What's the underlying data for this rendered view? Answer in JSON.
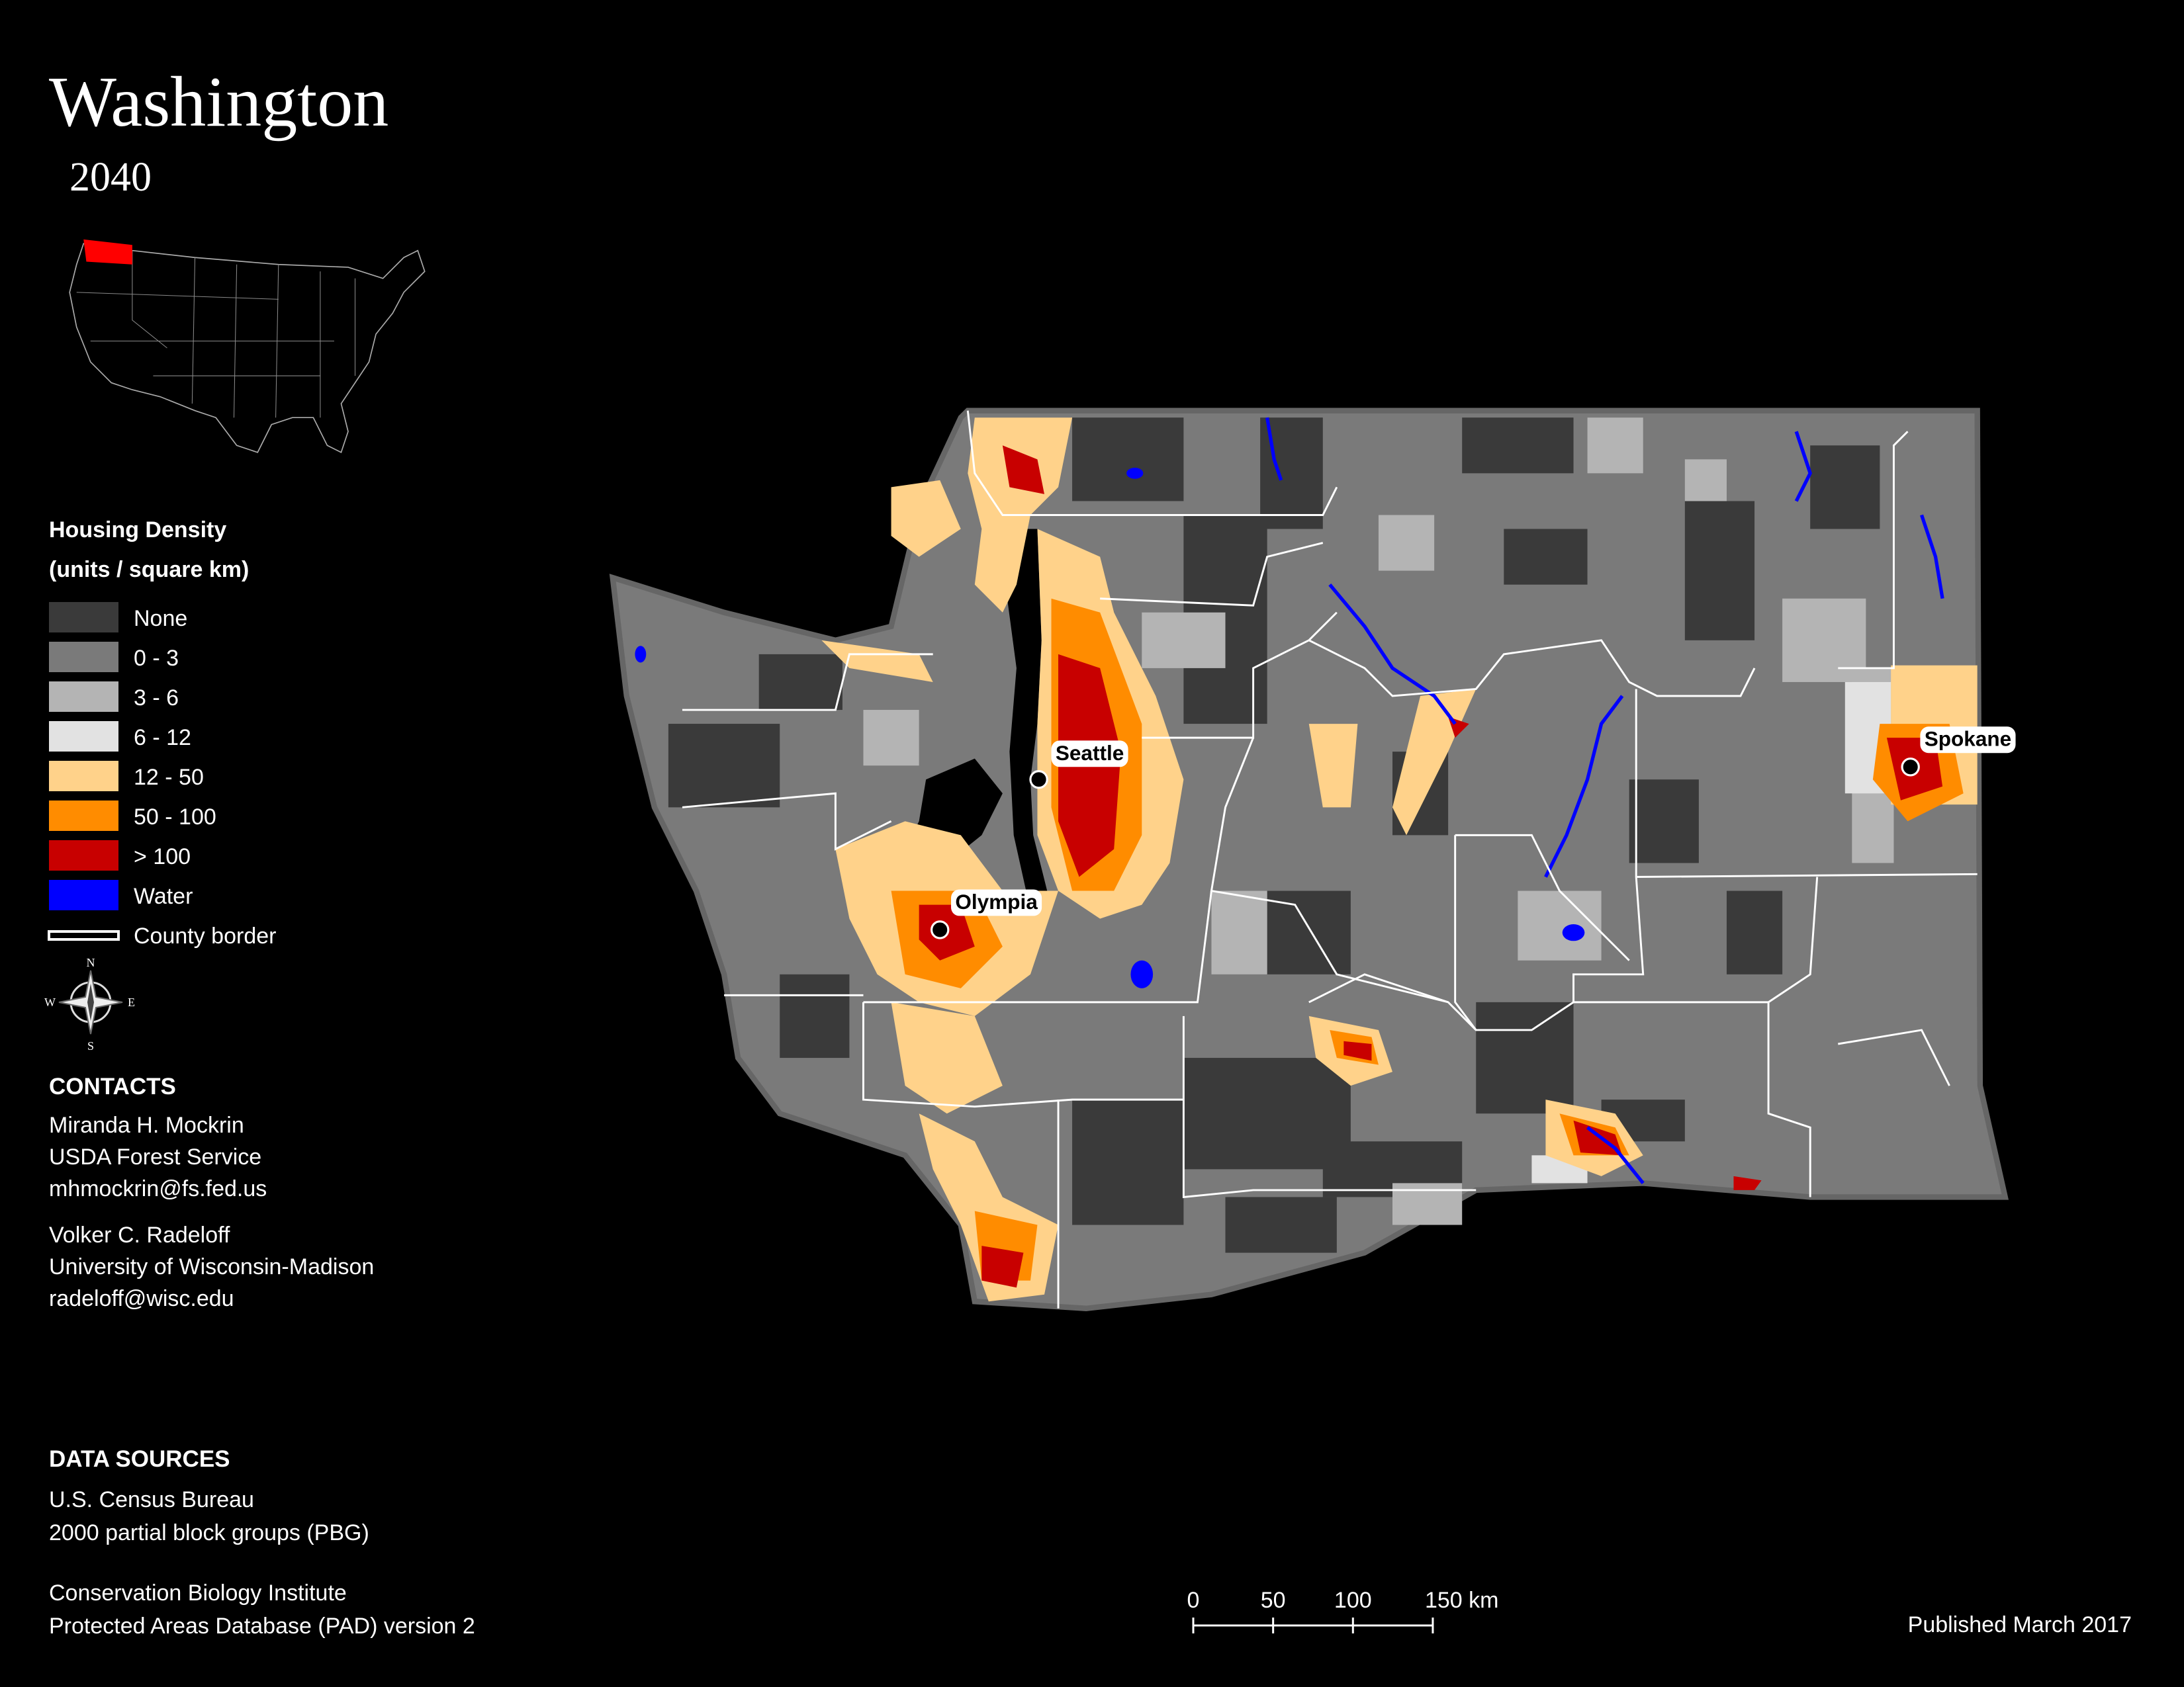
{
  "title": "Washington",
  "subtitle": "2040",
  "legend": {
    "title": "Housing Density",
    "units": "(units / square km)",
    "items": [
      {
        "label": "None",
        "color": "#3a3a3a"
      },
      {
        "label": "0 - 3",
        "color": "#7a7a7a"
      },
      {
        "label": "3 - 6",
        "color": "#b4b4b4"
      },
      {
        "label": "6 - 12",
        "color": "#e2e2e2"
      },
      {
        "label": "12 - 50",
        "color": "#ffd28a"
      },
      {
        "label": "50 - 100",
        "color": "#ff8c00"
      },
      {
        "label": "> 100",
        "color": "#c80000"
      },
      {
        "label": "Water",
        "color": "#0000ff"
      },
      {
        "label": "County border",
        "color": "#ffffff"
      }
    ]
  },
  "compass": {
    "north": "N",
    "east": "E",
    "south": "S",
    "west": "W"
  },
  "cities": [
    "Seattle",
    "Olympia",
    "Spokane"
  ],
  "contacts": {
    "heading": "CONTACTS",
    "people": [
      {
        "name": "Miranda H. Mockrin",
        "org": "USDA Forest Service",
        "email": "mhmockrin@fs.fed.us"
      },
      {
        "name": "Volker C. Radeloff",
        "org": "University of Wisconsin-Madison",
        "email": "radeloff@wisc.edu"
      }
    ]
  },
  "data_sources": {
    "heading": "DATA SOURCES",
    "items": [
      [
        "U.S. Census Bureau",
        "2000 partial block groups (PBG)"
      ],
      [
        "Conservation Biology Institute",
        "Protected Areas Database (PAD) version 2"
      ]
    ]
  },
  "scale_bar": {
    "ticks": [
      0,
      50,
      100,
      {
        "value": 150,
        "label": "150 km"
      }
    ]
  },
  "published": "Published March 2017"
}
